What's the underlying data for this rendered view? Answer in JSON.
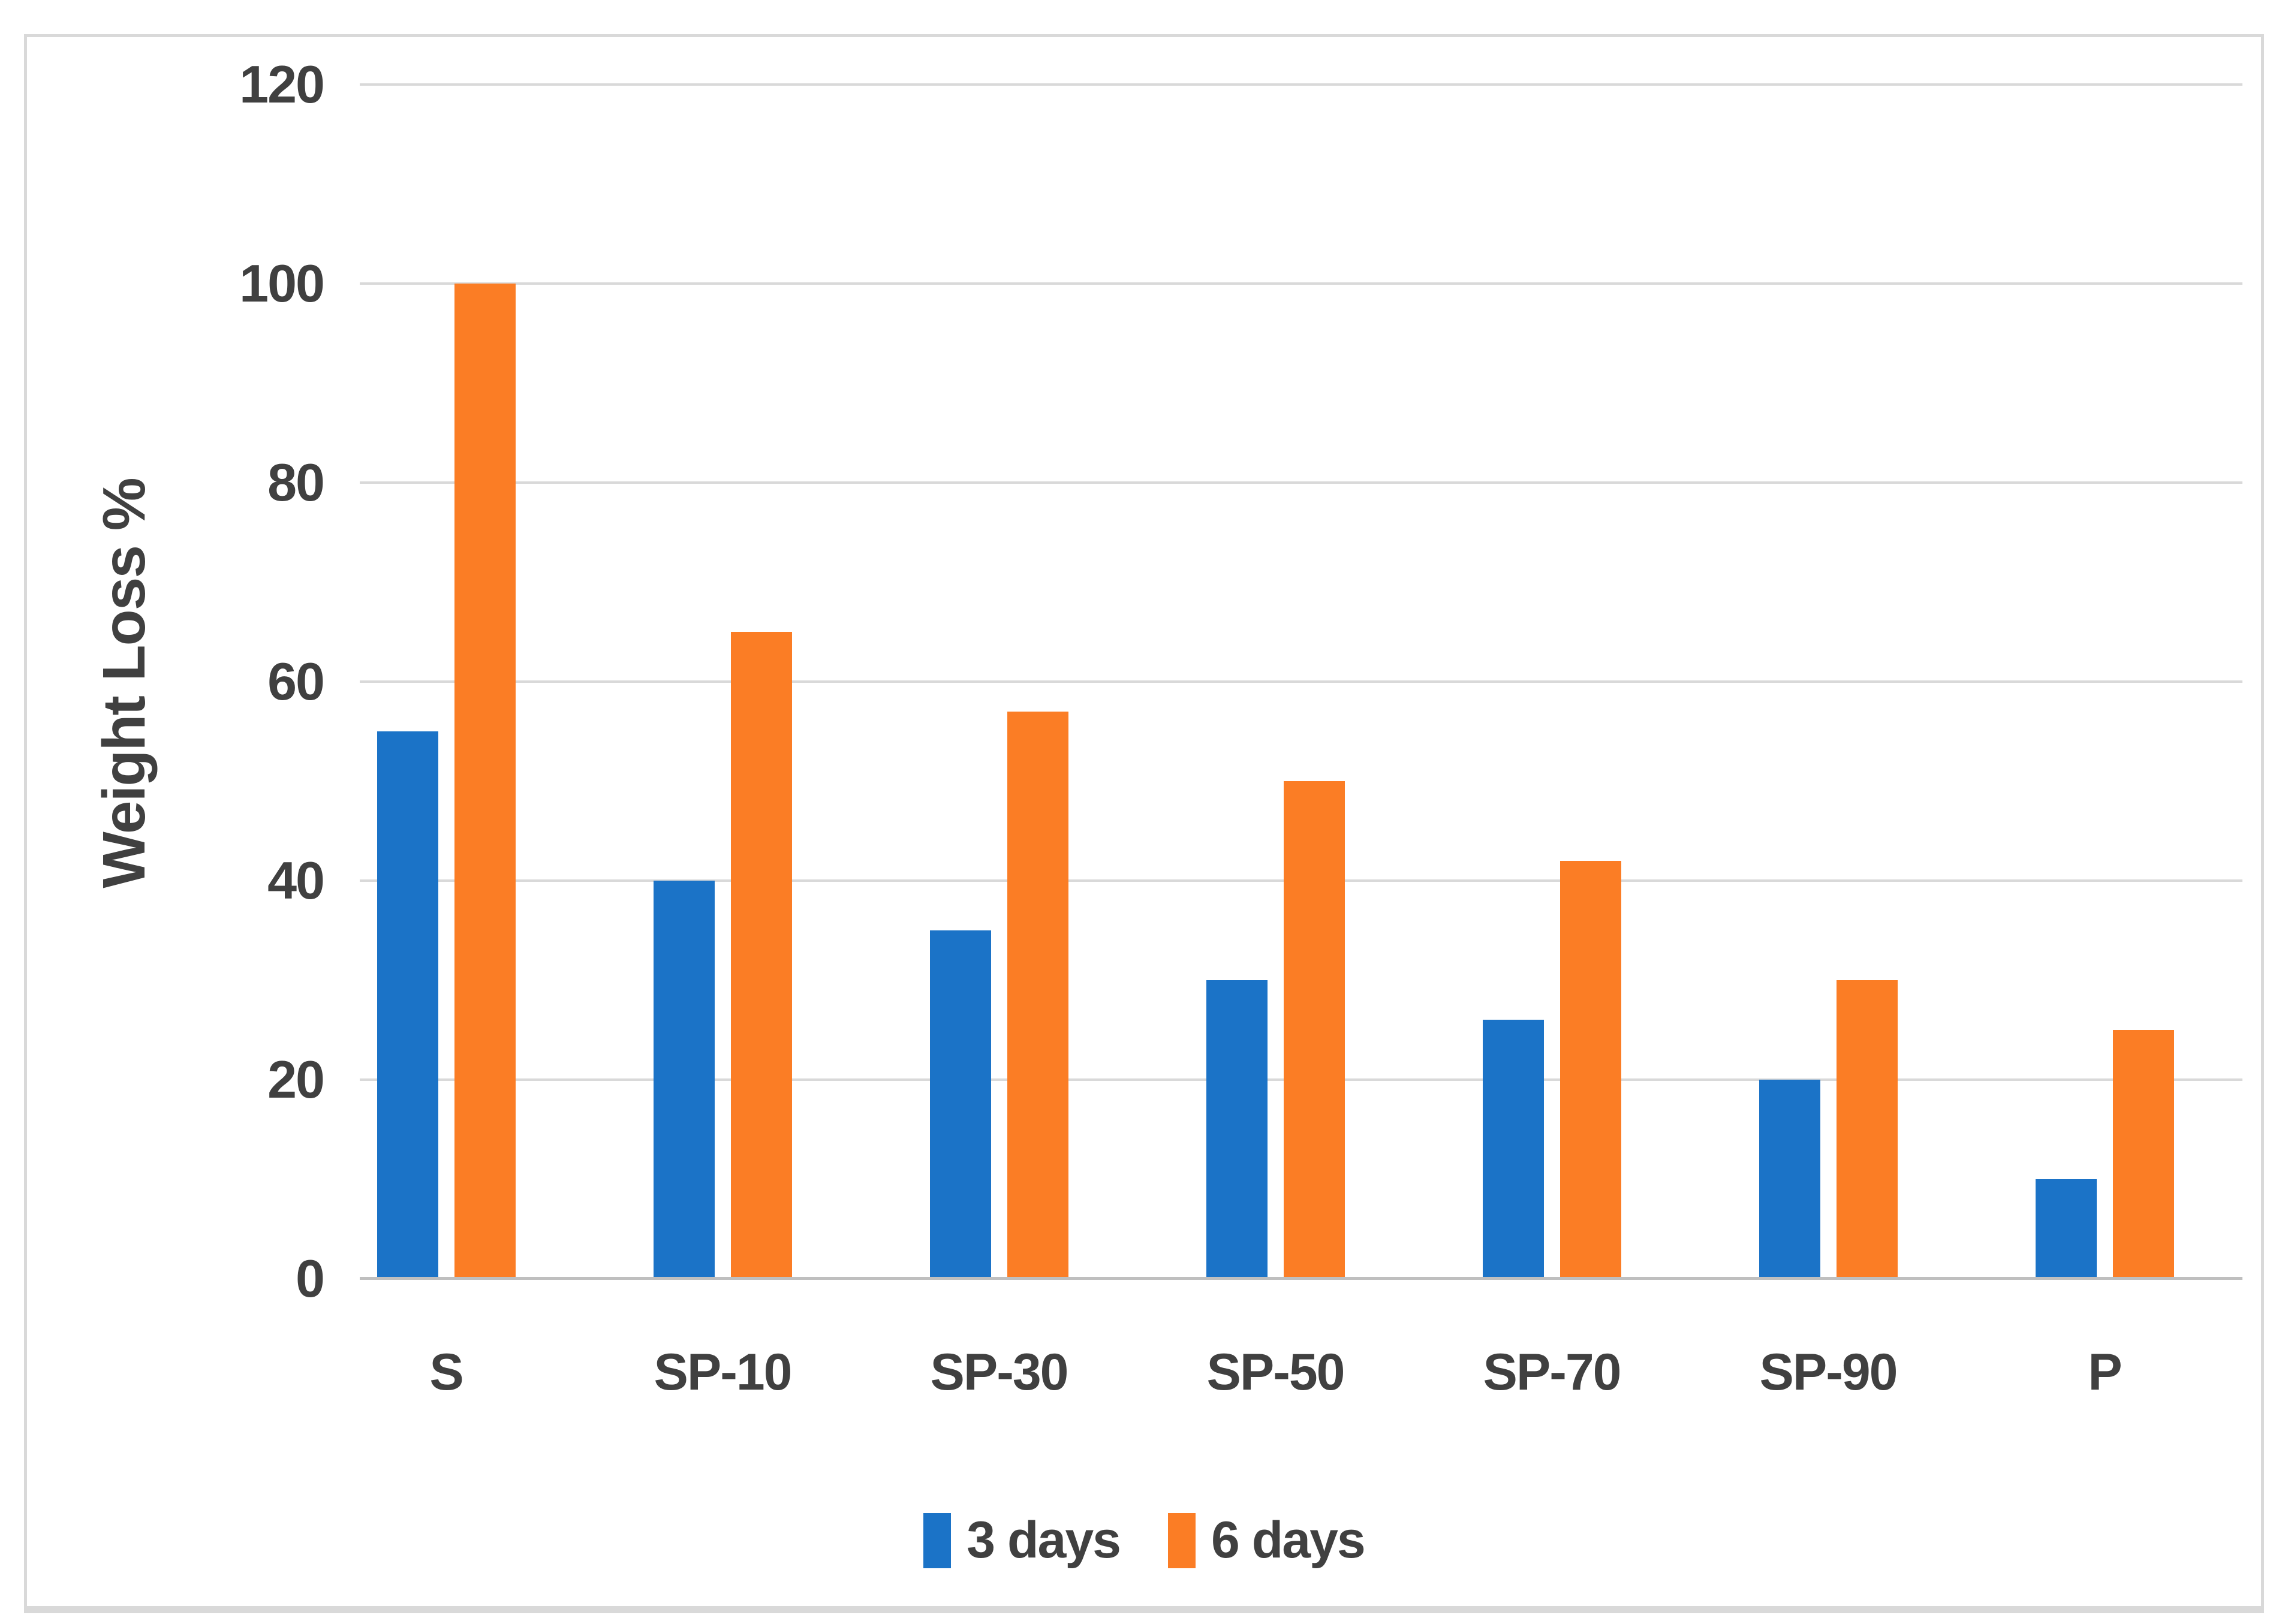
{
  "chart_data": {
    "type": "bar",
    "title": "",
    "xlabel": "",
    "ylabel": "Weight Loss %",
    "categories": [
      "S",
      "SP-10",
      "SP-30",
      "SP-50",
      "SP-70",
      "SP-90",
      "P"
    ],
    "series": [
      {
        "name": "3 days",
        "color": "#1b73c7",
        "values": [
          55,
          40,
          35,
          30,
          26,
          20,
          10
        ]
      },
      {
        "name": "6 days",
        "color": "#fb7d25",
        "values": [
          100,
          65,
          57,
          50,
          42,
          30,
          25
        ]
      }
    ],
    "y_axis": {
      "min": 0,
      "max": 120,
      "step": 20,
      "ticks": [
        0,
        20,
        40,
        60,
        80,
        100,
        120
      ]
    },
    "grid": true,
    "legend_position": "bottom-center"
  },
  "colors": {
    "series_blue": "#1b73c7",
    "series_orange": "#fb7d25",
    "gridline": "#d9d9d9",
    "axis_line": "#bfbfbf",
    "text": "#404040",
    "frame_border": "#d9d9d9",
    "background": "#ffffff"
  }
}
